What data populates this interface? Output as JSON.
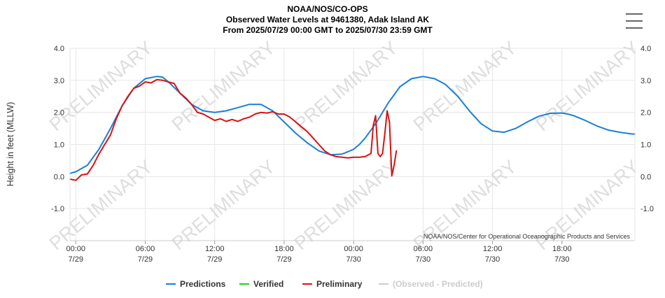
{
  "menu_icon": "hamburger-menu-icon",
  "chart_data": {
    "type": "line",
    "title_lines": [
      "NOAA/NOS/CO-OPS",
      "Observed Water Levels at 9461380, Adak Island AK",
      "From 2025/07/29 00:00 GMT to 2025/07/30 23:59 GMT"
    ],
    "ylabel": "Height in feet (MLLW)",
    "ylim": [
      -2.0,
      4.0
    ],
    "xlim_hours": [
      -0.5,
      48.3
    ],
    "yticks": [
      {
        "value": 4.0,
        "label": "4.0"
      },
      {
        "value": 3.0,
        "label": "3.0"
      },
      {
        "value": 2.0,
        "label": "2.0"
      },
      {
        "value": 1.0,
        "label": "1.0"
      },
      {
        "value": 0.0,
        "label": "0.0"
      },
      {
        "value": -1.0,
        "label": "-1.0"
      }
    ],
    "xticks": [
      {
        "hour": 0,
        "time": "00:00",
        "date": "7/29"
      },
      {
        "hour": 6,
        "time": "06:00",
        "date": "7/29"
      },
      {
        "hour": 12,
        "time": "12:00",
        "date": "7/29"
      },
      {
        "hour": 18,
        "time": "18:00",
        "date": "7/29"
      },
      {
        "hour": 24,
        "time": "00:00",
        "date": "7/30"
      },
      {
        "hour": 30,
        "time": "06:00",
        "date": "7/30"
      },
      {
        "hour": 36,
        "time": "12:00",
        "date": "7/30"
      },
      {
        "hour": 42,
        "time": "18:00",
        "date": "7/30"
      }
    ],
    "watermark": "PRELIMINARY",
    "credit": "NOAA/NOS/Center for Operational Oceanographic Products and Services",
    "series": [
      {
        "name": "Predictions",
        "color": "#1a7fd6",
        "x": [
          -0.5,
          0,
          1,
          2,
          3,
          4,
          5,
          6,
          7,
          7.5,
          8,
          9,
          10,
          11,
          12,
          13,
          14,
          15,
          16,
          17,
          18,
          19,
          20,
          21,
          22,
          23,
          24,
          24.5,
          25,
          26,
          27,
          28,
          29,
          30,
          31,
          31.8,
          32,
          33,
          34,
          35,
          36,
          37,
          38,
          39,
          40,
          41,
          42,
          42.5,
          43,
          44,
          45,
          46,
          47,
          48,
          48.3
        ],
        "y": [
          0.1,
          0.15,
          0.35,
          0.85,
          1.5,
          2.2,
          2.75,
          3.05,
          3.12,
          3.1,
          2.95,
          2.6,
          2.25,
          2.05,
          2.0,
          2.05,
          2.15,
          2.25,
          2.25,
          2.05,
          1.7,
          1.35,
          1.05,
          0.8,
          0.68,
          0.7,
          0.85,
          1.0,
          1.2,
          1.7,
          2.3,
          2.8,
          3.05,
          3.12,
          3.05,
          2.9,
          2.85,
          2.5,
          2.05,
          1.65,
          1.42,
          1.38,
          1.5,
          1.7,
          1.88,
          1.97,
          1.98,
          1.95,
          1.9,
          1.75,
          1.58,
          1.45,
          1.38,
          1.33,
          1.32
        ]
      },
      {
        "name": "Verified",
        "color": "#22cc22",
        "x": [],
        "y": []
      },
      {
        "name": "Preliminary",
        "color": "#d91212",
        "x": [
          -0.5,
          0,
          0.5,
          1,
          1.5,
          2,
          2.5,
          3,
          3.5,
          4,
          4.5,
          5,
          5.5,
          6,
          6.5,
          7,
          7.5,
          8,
          8.5,
          9,
          9.5,
          10,
          10.5,
          11,
          11.5,
          12,
          12.5,
          13,
          13.5,
          14,
          14.5,
          15,
          15.5,
          16,
          16.5,
          17,
          17.5,
          18,
          18.5,
          19,
          19.5,
          20,
          20.5,
          21,
          21.5,
          22,
          22.5,
          23,
          23.5,
          24,
          24.5,
          25,
          25.5,
          25.7,
          25.9,
          26.1,
          26.3,
          26.5,
          26.7,
          26.9,
          27.1,
          27.3,
          27.5,
          27.7
        ],
        "y": [
          -0.08,
          -0.12,
          0.05,
          0.08,
          0.35,
          0.7,
          1.0,
          1.3,
          1.8,
          2.2,
          2.5,
          2.75,
          2.82,
          2.95,
          2.92,
          3.02,
          3.0,
          2.95,
          2.9,
          2.6,
          2.45,
          2.25,
          2.0,
          1.95,
          1.85,
          1.75,
          1.8,
          1.72,
          1.78,
          1.72,
          1.8,
          1.85,
          1.95,
          2.0,
          1.98,
          2.02,
          1.95,
          1.95,
          1.85,
          1.7,
          1.55,
          1.4,
          1.2,
          1.0,
          0.8,
          0.68,
          0.62,
          0.6,
          0.58,
          0.6,
          0.6,
          0.62,
          0.72,
          1.6,
          1.9,
          0.72,
          0.62,
          0.72,
          1.35,
          2.05,
          1.7,
          0.02,
          0.35,
          0.8
        ]
      },
      {
        "name": "(Observed - Predicted)",
        "color": "#cccccc",
        "x": [],
        "y": []
      }
    ],
    "legend": [
      "Predictions",
      "Verified",
      "Preliminary",
      "(Observed - Predicted)"
    ],
    "legend_position": "bottom",
    "grid": true
  }
}
